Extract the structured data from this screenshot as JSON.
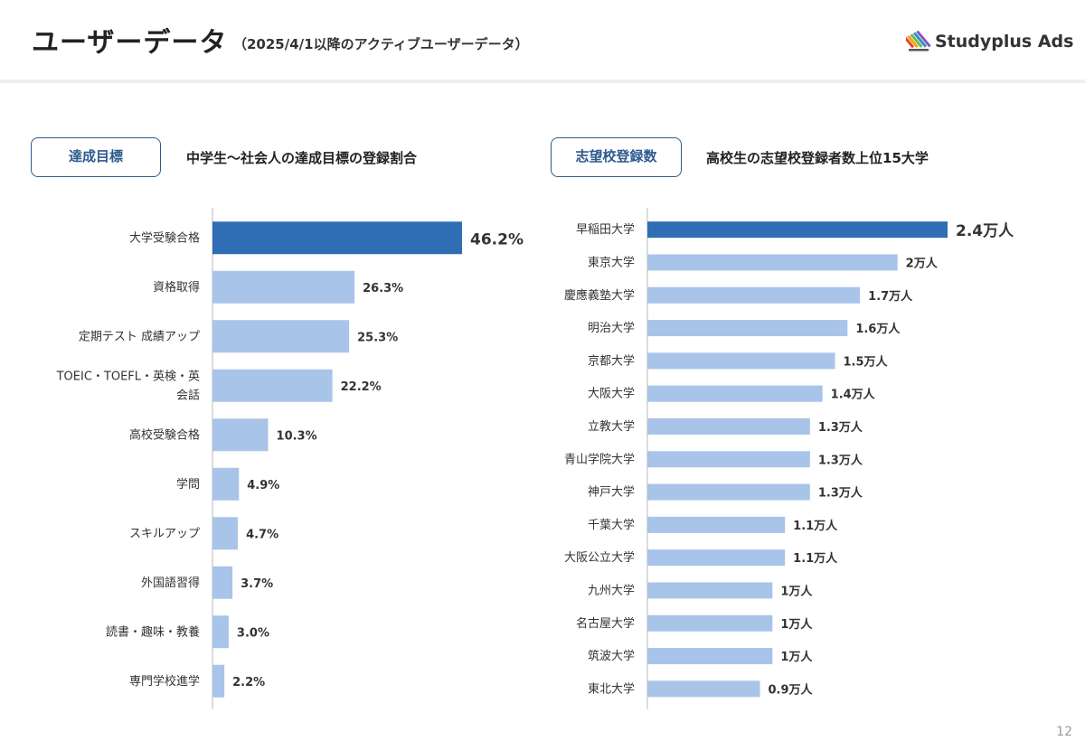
{
  "header": {
    "title": "ユーザーデータ",
    "subtitle": "（2025/4/1以降のアクティブユーザーデータ）",
    "logo_text": "Studyplus Ads"
  },
  "sections": {
    "left": {
      "tag": "達成目標",
      "description": "中学生〜社会人の達成目標の登録割合"
    },
    "right": {
      "tag": "志望校登録数",
      "description": "高校生の志望校登録者数上位15大学"
    }
  },
  "page_number": "12",
  "colors": {
    "highlight_bar": "#2f6db5",
    "bar": "#a9c4e9",
    "axis": "#d0d0d0",
    "tag_border": "#2d5a8e"
  },
  "chart_data": [
    {
      "type": "bar",
      "orientation": "horizontal",
      "categories": [
        "大学受験合格",
        "資格取得",
        "定期テスト 成績アップ",
        "TOEIC・TOEFL・英検・英会話",
        "高校受験合格",
        "学問",
        "スキルアップ",
        "外国語習得",
        "読書・趣味・教養",
        "専門学校進学"
      ],
      "category_lines": [
        [
          "大学受験合格"
        ],
        [
          "資格取得"
        ],
        [
          "定期テスト 成績アップ"
        ],
        [
          "TOEIC・TOEFL・英検・英",
          "会話"
        ],
        [
          "高校受験合格"
        ],
        [
          "学問"
        ],
        [
          "スキルアップ"
        ],
        [
          "外国語習得"
        ],
        [
          "読書・趣味・教養"
        ],
        [
          "専門学校進学"
        ]
      ],
      "values": [
        46.2,
        26.3,
        25.3,
        22.2,
        10.3,
        4.9,
        4.7,
        3.7,
        3.0,
        2.2
      ],
      "labels": [
        "46.2%",
        "26.3%",
        "25.3%",
        "22.2%",
        "10.3%",
        "4.9%",
        "4.7%",
        "3.7%",
        "3.0%",
        "2.2%"
      ],
      "xlim": [
        0,
        46.2
      ],
      "highlight_index": 0,
      "grid": false
    },
    {
      "type": "bar",
      "orientation": "horizontal",
      "categories": [
        "早稲田大学",
        "東京大学",
        "慶應義塾大学",
        "明治大学",
        "京都大学",
        "大阪大学",
        "立教大学",
        "青山学院大学",
        "神戸大学",
        "千葉大学",
        "大阪公立大学",
        "九州大学",
        "名古屋大学",
        "筑波大学",
        "東北大学"
      ],
      "values": [
        2.4,
        2.0,
        1.7,
        1.6,
        1.5,
        1.4,
        1.3,
        1.3,
        1.3,
        1.1,
        1.1,
        1.0,
        1.0,
        1.0,
        0.9
      ],
      "labels": [
        "2.4万人",
        "2万人",
        "1.7万人",
        "1.6万人",
        "1.5万人",
        "1.4万人",
        "1.3万人",
        "1.3万人",
        "1.3万人",
        "1.1万人",
        "1.1万人",
        "1万人",
        "1万人",
        "1万人",
        "0.9万人"
      ],
      "unit": "万人",
      "xlim": [
        0,
        2.4
      ],
      "highlight_index": 0,
      "grid": false
    }
  ]
}
